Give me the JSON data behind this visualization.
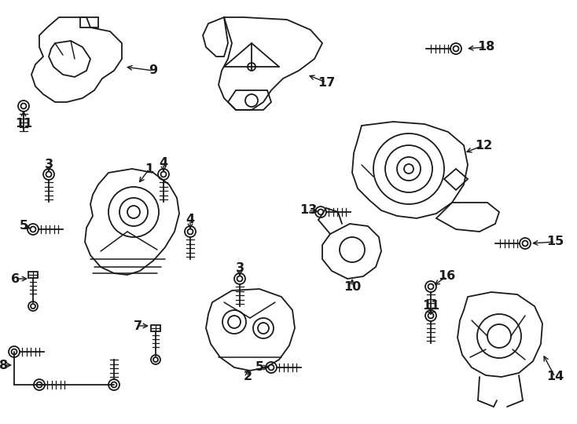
{
  "background_color": "#ffffff",
  "line_color": "#1a1a1a",
  "line_width": 1.3,
  "label_fontsize": 11.5,
  "figsize": [
    7.34,
    5.4
  ],
  "dpi": 100,
  "border_color": "#cccccc"
}
